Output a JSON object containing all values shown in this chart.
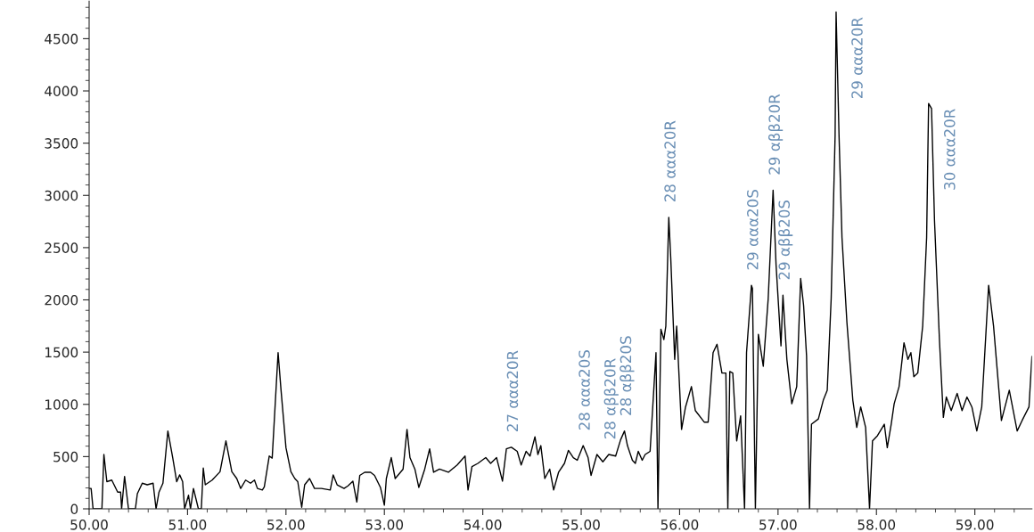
{
  "chart_data": {
    "type": "line",
    "xlim": [
      50,
      59.58
    ],
    "ylim": [
      0,
      4860
    ],
    "xticks": [
      {
        "value": 50,
        "label": "50.00"
      },
      {
        "value": 51,
        "label": "51.00"
      },
      {
        "value": 52,
        "label": "52.00"
      },
      {
        "value": 53,
        "label": "53.00"
      },
      {
        "value": 54,
        "label": "54.00"
      },
      {
        "value": 55,
        "label": "55.00"
      },
      {
        "value": 56,
        "label": "56.00"
      },
      {
        "value": 57,
        "label": "57.00"
      },
      {
        "value": 58,
        "label": "58.00"
      },
      {
        "value": 59,
        "label": "59.00"
      }
    ],
    "yticks": [
      0,
      500,
      1000,
      1500,
      2000,
      2500,
      3000,
      3500,
      4000,
      4500
    ],
    "grid": false,
    "legend": false,
    "marker": "none",
    "line_style": "solid",
    "series": [
      {
        "color": "#000000",
        "x": [
          50.0,
          50.02,
          50.04,
          50.13,
          50.15,
          50.18,
          50.23,
          50.29,
          50.32,
          50.33,
          50.36,
          50.4,
          50.47,
          50.49,
          50.54,
          50.59,
          50.65,
          50.68,
          50.71,
          50.75,
          50.8,
          50.85,
          50.89,
          50.92,
          50.95,
          50.97,
          51.01,
          51.03,
          51.06,
          51.11,
          51.14,
          51.16,
          51.18,
          51.25,
          51.33,
          51.39,
          51.45,
          51.5,
          51.54,
          51.59,
          51.64,
          51.68,
          51.71,
          51.76,
          51.78,
          51.83,
          51.86,
          51.92,
          51.95,
          52.0,
          52.05,
          52.09,
          52.12,
          52.16,
          52.19,
          52.24,
          52.29,
          52.36,
          52.45,
          52.48,
          52.52,
          52.59,
          52.63,
          52.68,
          52.72,
          52.75,
          52.8,
          52.86,
          52.9,
          52.96,
          53.0,
          53.02,
          53.07,
          53.11,
          53.19,
          53.23,
          53.26,
          53.31,
          53.35,
          53.41,
          53.46,
          53.5,
          53.56,
          53.65,
          53.74,
          53.82,
          53.85,
          53.89,
          53.95,
          54.03,
          54.08,
          54.14,
          54.2,
          54.24,
          54.29,
          54.35,
          54.39,
          54.44,
          54.48,
          54.53,
          54.56,
          54.59,
          54.63,
          54.68,
          54.72,
          54.77,
          54.83,
          54.87,
          54.92,
          54.96,
          55.02,
          55.07,
          55.1,
          55.16,
          55.22,
          55.28,
          55.35,
          55.4,
          55.44,
          55.47,
          55.52,
          55.55,
          55.58,
          55.62,
          55.65,
          55.7,
          55.76,
          55.78,
          55.81,
          55.84,
          55.86,
          55.89,
          55.91,
          55.95,
          55.97,
          56.02,
          56.06,
          56.12,
          56.16,
          56.25,
          56.29,
          56.34,
          56.38,
          56.43,
          56.47,
          56.49,
          56.51,
          56.54,
          56.58,
          56.62,
          56.66,
          56.68,
          56.73,
          56.74,
          56.77,
          56.8,
          56.85,
          56.9,
          56.95,
          56.98,
          57.03,
          57.05,
          57.09,
          57.14,
          57.19,
          57.23,
          57.26,
          57.29,
          57.32,
          57.34,
          57.41,
          57.46,
          57.5,
          57.54,
          57.58,
          57.59,
          57.62,
          57.65,
          57.7,
          57.76,
          57.8,
          57.84,
          57.89,
          57.93,
          57.96,
          58.01,
          58.08,
          58.11,
          58.15,
          58.18,
          58.23,
          58.28,
          58.32,
          58.35,
          58.38,
          58.42,
          58.47,
          58.51,
          58.53,
          58.56,
          58.59,
          58.64,
          58.68,
          58.71,
          58.76,
          58.82,
          58.87,
          58.92,
          58.97,
          59.02,
          59.07,
          59.14,
          59.19,
          59.27,
          59.35,
          59.43,
          59.48,
          59.55,
          59.58
        ],
        "values": [
          195,
          195,
          0,
          0,
          520,
          260,
          275,
          160,
          160,
          0,
          310,
          0,
          0,
          145,
          245,
          230,
          245,
          0,
          160,
          245,
          745,
          485,
          260,
          325,
          260,
          0,
          130,
          0,
          195,
          0,
          0,
          390,
          230,
          275,
          355,
          650,
          355,
          290,
          195,
          275,
          245,
          275,
          195,
          180,
          210,
          505,
          485,
          1495,
          1135,
          585,
          355,
          290,
          260,
          15,
          230,
          290,
          195,
          195,
          180,
          325,
          230,
          195,
          220,
          265,
          65,
          320,
          350,
          350,
          320,
          205,
          35,
          290,
          490,
          290,
          380,
          760,
          490,
          380,
          205,
          380,
          575,
          350,
          380,
          350,
          420,
          505,
          180,
          405,
          435,
          490,
          435,
          490,
          265,
          575,
          590,
          550,
          420,
          550,
          505,
          690,
          520,
          605,
          290,
          380,
          180,
          350,
          435,
          560,
          490,
          465,
          605,
          490,
          320,
          520,
          450,
          520,
          505,
          660,
          745,
          605,
          465,
          435,
          550,
          465,
          520,
          550,
          1495,
          0,
          1720,
          1620,
          1750,
          2790,
          2400,
          1430,
          1750,
          760,
          975,
          1170,
          940,
          830,
          830,
          1495,
          1575,
          1300,
          1300,
          0,
          1315,
          1300,
          650,
          890,
          0,
          1495,
          2140,
          2110,
          0,
          1670,
          1365,
          2010,
          3050,
          2335,
          1560,
          2045,
          1430,
          1005,
          1170,
          2205,
          1945,
          1460,
          0,
          810,
          860,
          1040,
          1135,
          2010,
          3570,
          4755,
          3570,
          2595,
          1785,
          1040,
          780,
          975,
          780,
          0,
          650,
          700,
          810,
          585,
          810,
          1005,
          1170,
          1590,
          1430,
          1495,
          1265,
          1300,
          1750,
          2595,
          3880,
          3830,
          2760,
          1620,
          875,
          1070,
          940,
          1105,
          940,
          1070,
          975,
          745,
          975,
          2140,
          1750,
          845,
          1135,
          745,
          845,
          975,
          1460
        ]
      }
    ],
    "annotations": [
      {
        "text": "27 ααα20R",
        "x": 54.29,
        "y": 590
      },
      {
        "text": "28 ααα20S",
        "x": 55.02,
        "y": 605
      },
      {
        "text": "28 αββ20R",
        "x": 55.28,
        "y": 520
      },
      {
        "text": "28 αββ20S",
        "x": 55.44,
        "y": 745
      },
      {
        "text": "28 ααα20R",
        "x": 55.89,
        "y": 2790
      },
      {
        "text": "29 ααα20S",
        "x": 56.73,
        "y": 2140
      },
      {
        "text": "29 αββ20R",
        "x": 56.95,
        "y": 3050
      },
      {
        "text": "29 αββ20S",
        "x": 57.05,
        "y": 2045
      },
      {
        "text": "29 ααα20R",
        "x": 57.59,
        "y": 4755
      },
      {
        "text": "30 ααα20R",
        "x": 58.53,
        "y": 3880
      }
    ]
  }
}
